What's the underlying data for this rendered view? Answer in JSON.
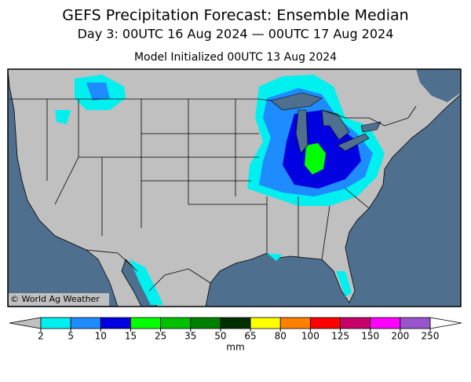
{
  "header": {
    "title": "GEFS Precipitation Forecast: Ensemble Median",
    "period": "Day 3: 00UTC 16 Aug 2024 — 00UTC 17 Aug 2024",
    "initialized": "Model Initialized 00UTC 13 Aug 2024"
  },
  "map": {
    "credit": "© World Ag Weather",
    "colorbar": {
      "label": "mm",
      "bounds": [
        2,
        5,
        10,
        15,
        25,
        35,
        50,
        65,
        80,
        100,
        125,
        150,
        200,
        250
      ],
      "colors": [
        "#00f0f0",
        "#1e8cff",
        "#0000e0",
        "#00ff00",
        "#00c000",
        "#008000",
        "#003000",
        "#ffff00",
        "#ff8000",
        "#ff0000",
        "#c8006a",
        "#ff00ff",
        "#9955cc"
      ],
      "under_color": "#c0c0c0",
      "over_color": "#ffffff"
    }
  }
}
